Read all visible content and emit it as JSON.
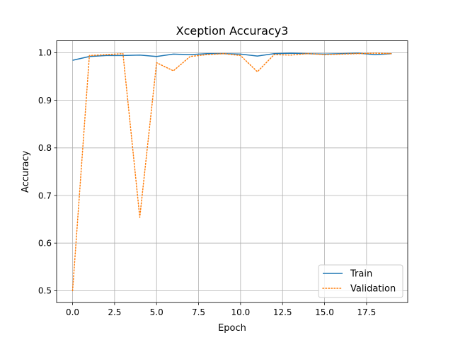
{
  "chart_data": {
    "type": "line",
    "title": "Xception Accuracy3",
    "xlabel": "Epoch",
    "ylabel": "Accuracy",
    "xlim": [
      -0.95,
      19.95
    ],
    "ylim": [
      0.475,
      1.025
    ],
    "xticks": [
      0,
      2.5,
      5,
      7.5,
      10,
      12.5,
      15,
      17.5
    ],
    "xtick_labels": [
      "0.0",
      "2.5",
      "5.0",
      "7.5",
      "10.0",
      "12.5",
      "15.0",
      "17.5"
    ],
    "yticks": [
      0.5,
      0.6,
      0.7,
      0.8,
      0.9,
      1.0
    ],
    "ytick_labels": [
      "0.5",
      "0.6",
      "0.7",
      "0.8",
      "0.9",
      "1.0"
    ],
    "grid": true,
    "legend_position": "lower-right",
    "x": [
      0,
      1,
      2,
      3,
      4,
      5,
      6,
      7,
      8,
      9,
      10,
      11,
      12,
      13,
      14,
      15,
      16,
      17,
      18,
      19
    ],
    "series": [
      {
        "name": "Train",
        "color": "#1f77b4",
        "linestyle": "solid",
        "values": [
          0.984,
          0.992,
          0.994,
          0.994,
          0.995,
          0.992,
          0.997,
          0.996,
          0.998,
          0.998,
          0.997,
          0.993,
          0.998,
          0.999,
          0.998,
          0.997,
          0.998,
          0.999,
          0.996,
          0.998
        ]
      },
      {
        "name": "Validation",
        "color": "#ff7f0e",
        "linestyle": "dotted",
        "values": [
          0.5,
          0.994,
          0.996,
          0.998,
          0.654,
          0.979,
          0.962,
          0.992,
          0.996,
          0.998,
          0.994,
          0.96,
          0.996,
          0.995,
          0.998,
          0.996,
          0.997,
          0.998,
          0.999,
          0.998
        ]
      }
    ]
  }
}
